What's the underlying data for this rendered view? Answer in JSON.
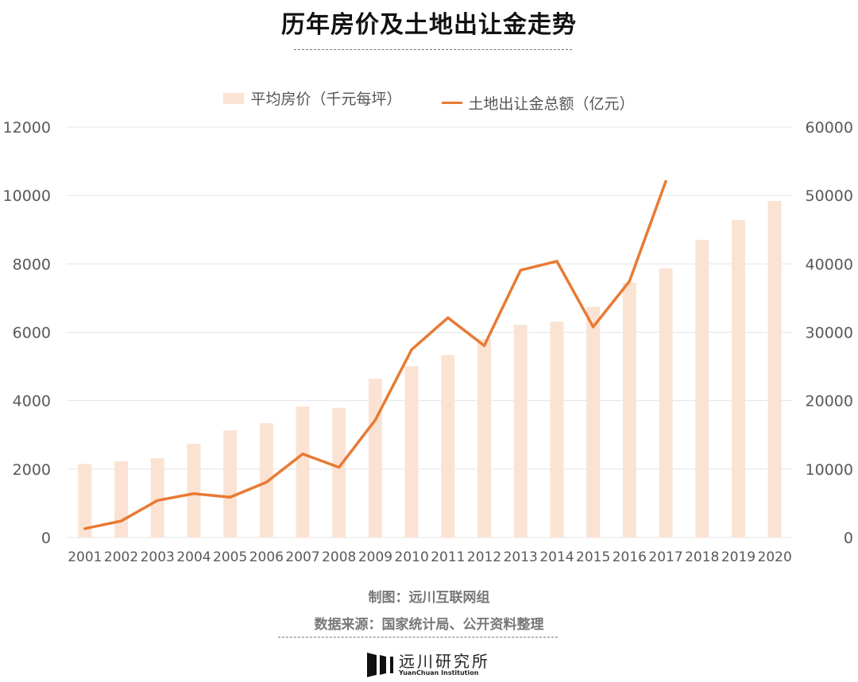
{
  "colors": {
    "bar": "#fbe3d4",
    "line": "#e87a33",
    "grid": "#e4e4e4",
    "text": "#595959"
  },
  "chart_data": {
    "type": "bar+line",
    "title": "历年房价及土地出让金走势",
    "legend_position": "top",
    "grid": true,
    "categories": [
      "2001",
      "2002",
      "2003",
      "2004",
      "2005",
      "2006",
      "2007",
      "2008",
      "2009",
      "2010",
      "2011",
      "2012",
      "2013",
      "2014",
      "2015",
      "2016",
      "2017",
      "2018",
      "2019",
      "2020"
    ],
    "series": [
      {
        "name": "平均房价（千元每坪）",
        "type": "bar",
        "axis": "left",
        "values": [
          2150,
          2230,
          2320,
          2740,
          3130,
          3340,
          3830,
          3790,
          4640,
          5010,
          5340,
          5800,
          6220,
          6310,
          6750,
          7450,
          7870,
          8700,
          9280,
          9840
        ]
      },
      {
        "name": "土地出让金总额（亿元）",
        "type": "line",
        "axis": "right",
        "values": [
          1296,
          2417,
          5421,
          6412,
          5884,
          8078,
          12217,
          10260,
          17180,
          27464,
          32126,
          28042,
          39073,
          40385,
          30784,
          37457,
          52059,
          null,
          null,
          null
        ]
      }
    ],
    "y_left": {
      "min": 0,
      "max": 12000,
      "ticks": [
        "0",
        "2000",
        "4000",
        "6000",
        "8000",
        "10000",
        "12000"
      ]
    },
    "y_right": {
      "min": 0,
      "max": 60000,
      "ticks": [
        "0",
        "10000",
        "20000",
        "30000",
        "40000",
        "50000",
        "60000"
      ]
    }
  },
  "credits": {
    "maker": "制图：远川互联网组",
    "source": "数据来源：国家统计局、公开资料整理"
  },
  "logo": {
    "cn": "远川研究所",
    "en": "YuanChuan Institution"
  }
}
